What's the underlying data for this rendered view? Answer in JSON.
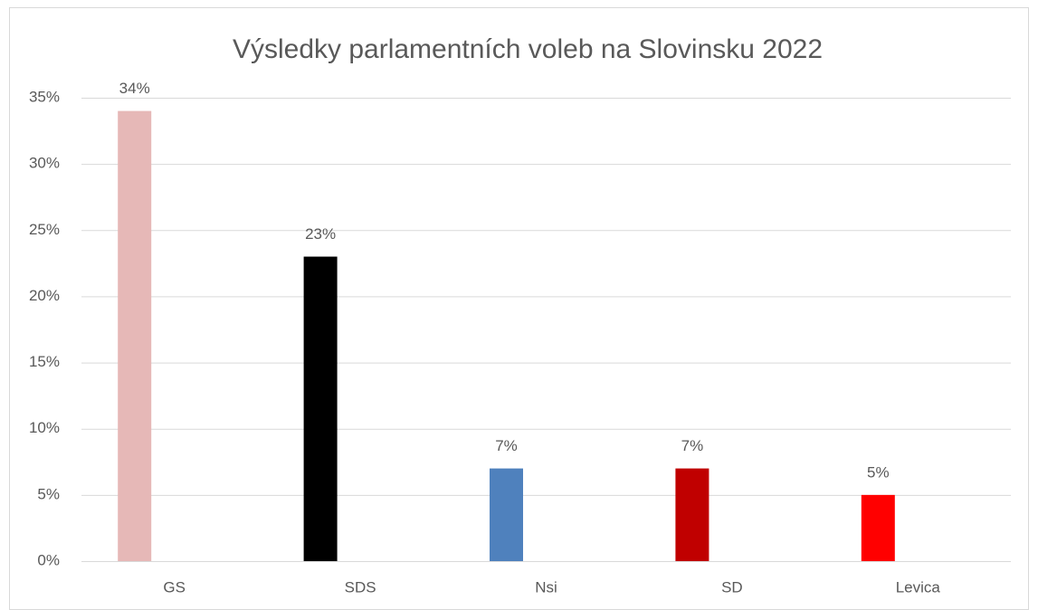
{
  "chart_data": {
    "type": "bar",
    "title": "Výsledky parlamentních voleb na Slovinsku 2022",
    "categories": [
      "GS",
      "SDS",
      "Nsi",
      "SD",
      "Levica"
    ],
    "values": [
      34,
      23,
      7,
      7,
      5
    ],
    "value_labels": [
      "34%",
      "23%",
      "7%",
      "7%",
      "5%"
    ],
    "colors": [
      "#e6b8b7",
      "#000000",
      "#4f81bd",
      "#c00000",
      "#ff0000"
    ],
    "ylim": [
      0,
      35
    ],
    "yticks": [
      {
        "value": 0,
        "label": "0%"
      },
      {
        "value": 5,
        "label": "5%"
      },
      {
        "value": 10,
        "label": "10%"
      },
      {
        "value": 15,
        "label": "15%"
      },
      {
        "value": 20,
        "label": "20%"
      },
      {
        "value": 25,
        "label": "25%"
      },
      {
        "value": 30,
        "label": "30%"
      },
      {
        "value": 35,
        "label": "35%"
      }
    ],
    "grid": true
  }
}
